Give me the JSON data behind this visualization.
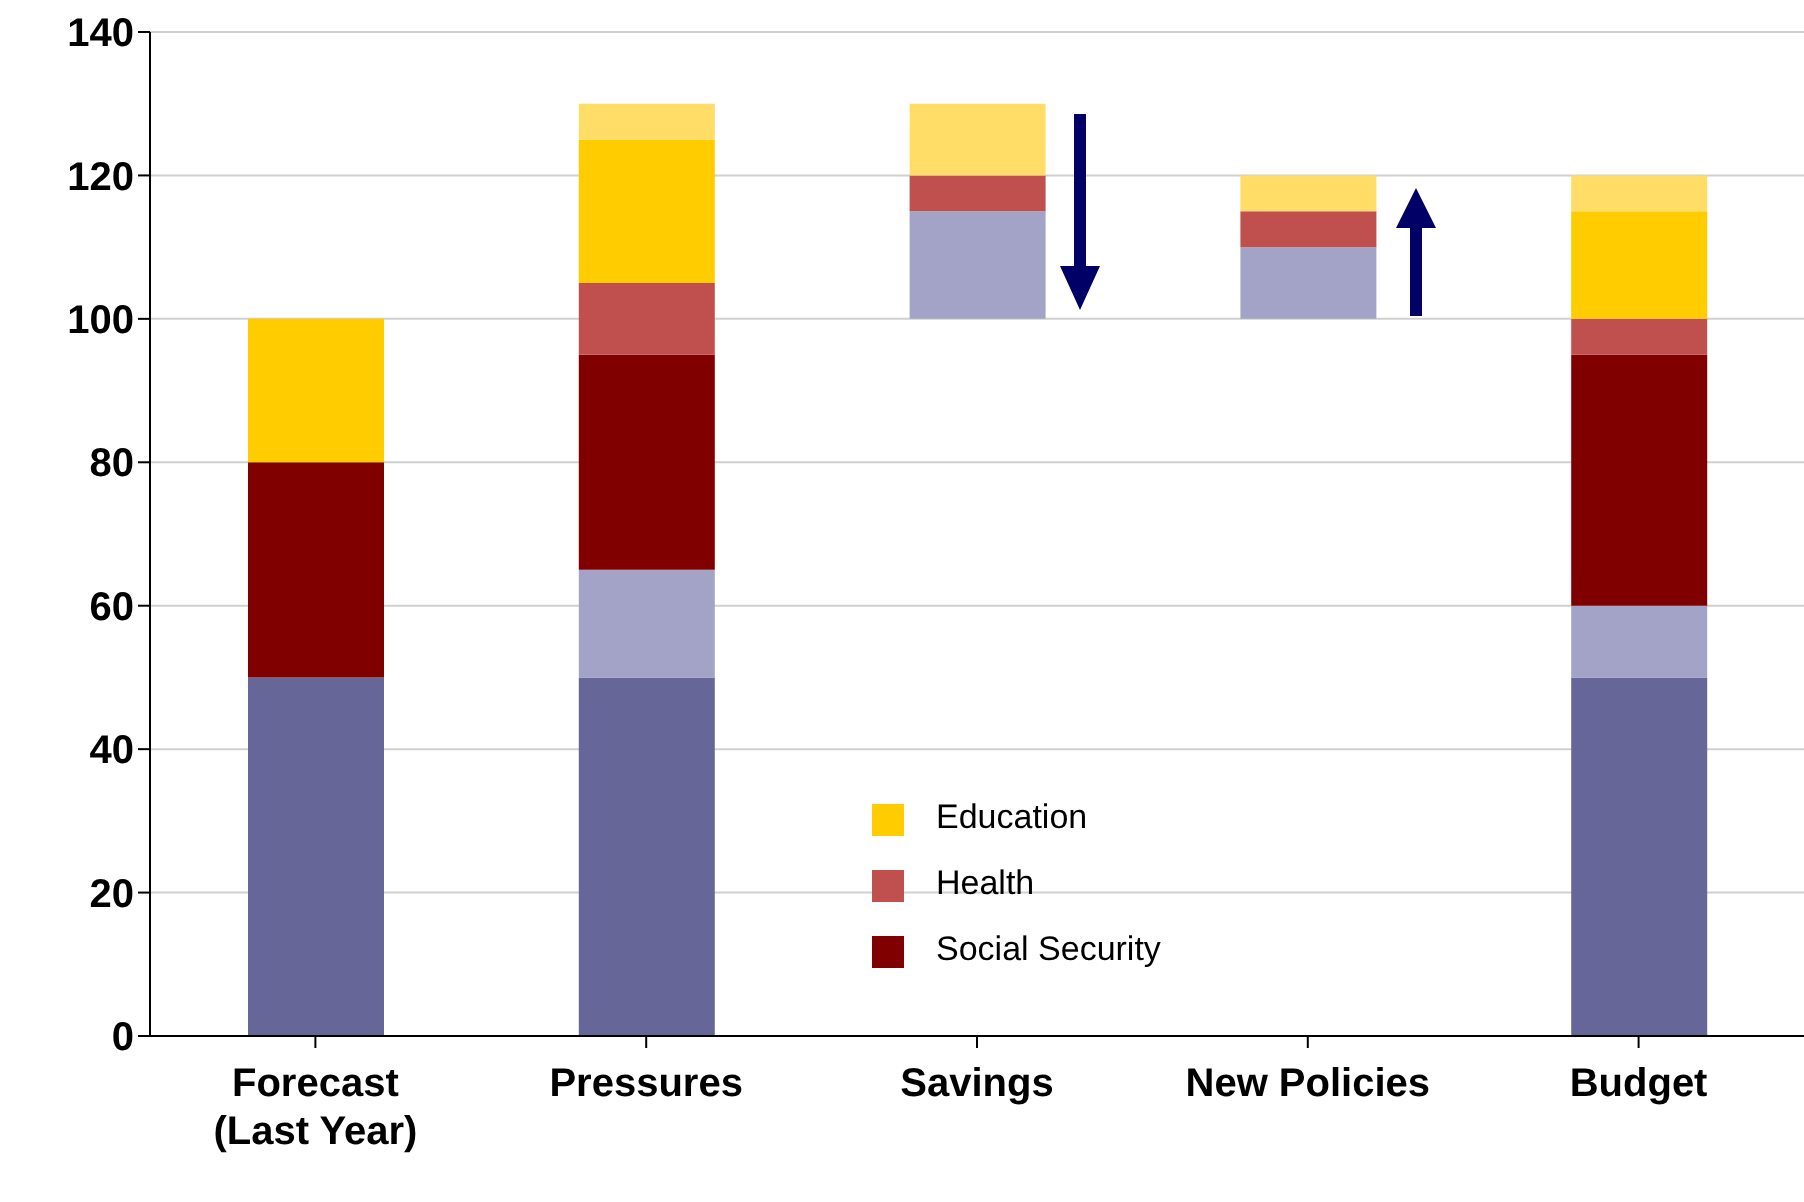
{
  "chart_data": {
    "type": "bar",
    "categories": [
      "Forecast (Last Year)",
      "Pressures",
      "Savings",
      "New Policies",
      "Budget"
    ],
    "series": [
      {
        "color": "#666699",
        "base": [
          0,
          0,
          null,
          null,
          0
        ],
        "values": [
          50,
          50,
          null,
          null,
          50
        ]
      },
      {
        "color": "#a3a3c8",
        "base": [
          null,
          50,
          100,
          100,
          50
        ],
        "values": [
          null,
          15,
          15,
          10,
          10
        ]
      },
      {
        "name": "Social Security",
        "color": "#800000",
        "base": [
          50,
          65,
          null,
          null,
          60
        ],
        "values": [
          30,
          30,
          null,
          null,
          35
        ]
      },
      {
        "name": "Health",
        "color": "#c0504d",
        "base": [
          null,
          95,
          115,
          110,
          95
        ],
        "values": [
          null,
          10,
          5,
          5,
          5
        ]
      },
      {
        "name": "Education",
        "color": "#ffcc00",
        "base": [
          80,
          105,
          null,
          null,
          100
        ],
        "values": [
          20,
          20,
          null,
          null,
          15
        ]
      },
      {
        "color": "#ffdd66",
        "base": [
          null,
          125,
          120,
          115,
          115
        ],
        "values": [
          null,
          5,
          10,
          5,
          5
        ]
      }
    ],
    "ylim": [
      0,
      140
    ],
    "yticks": [
      0,
      20,
      40,
      60,
      80,
      100,
      120,
      140
    ],
    "grid": "y",
    "legend": "bottom"
  }
}
